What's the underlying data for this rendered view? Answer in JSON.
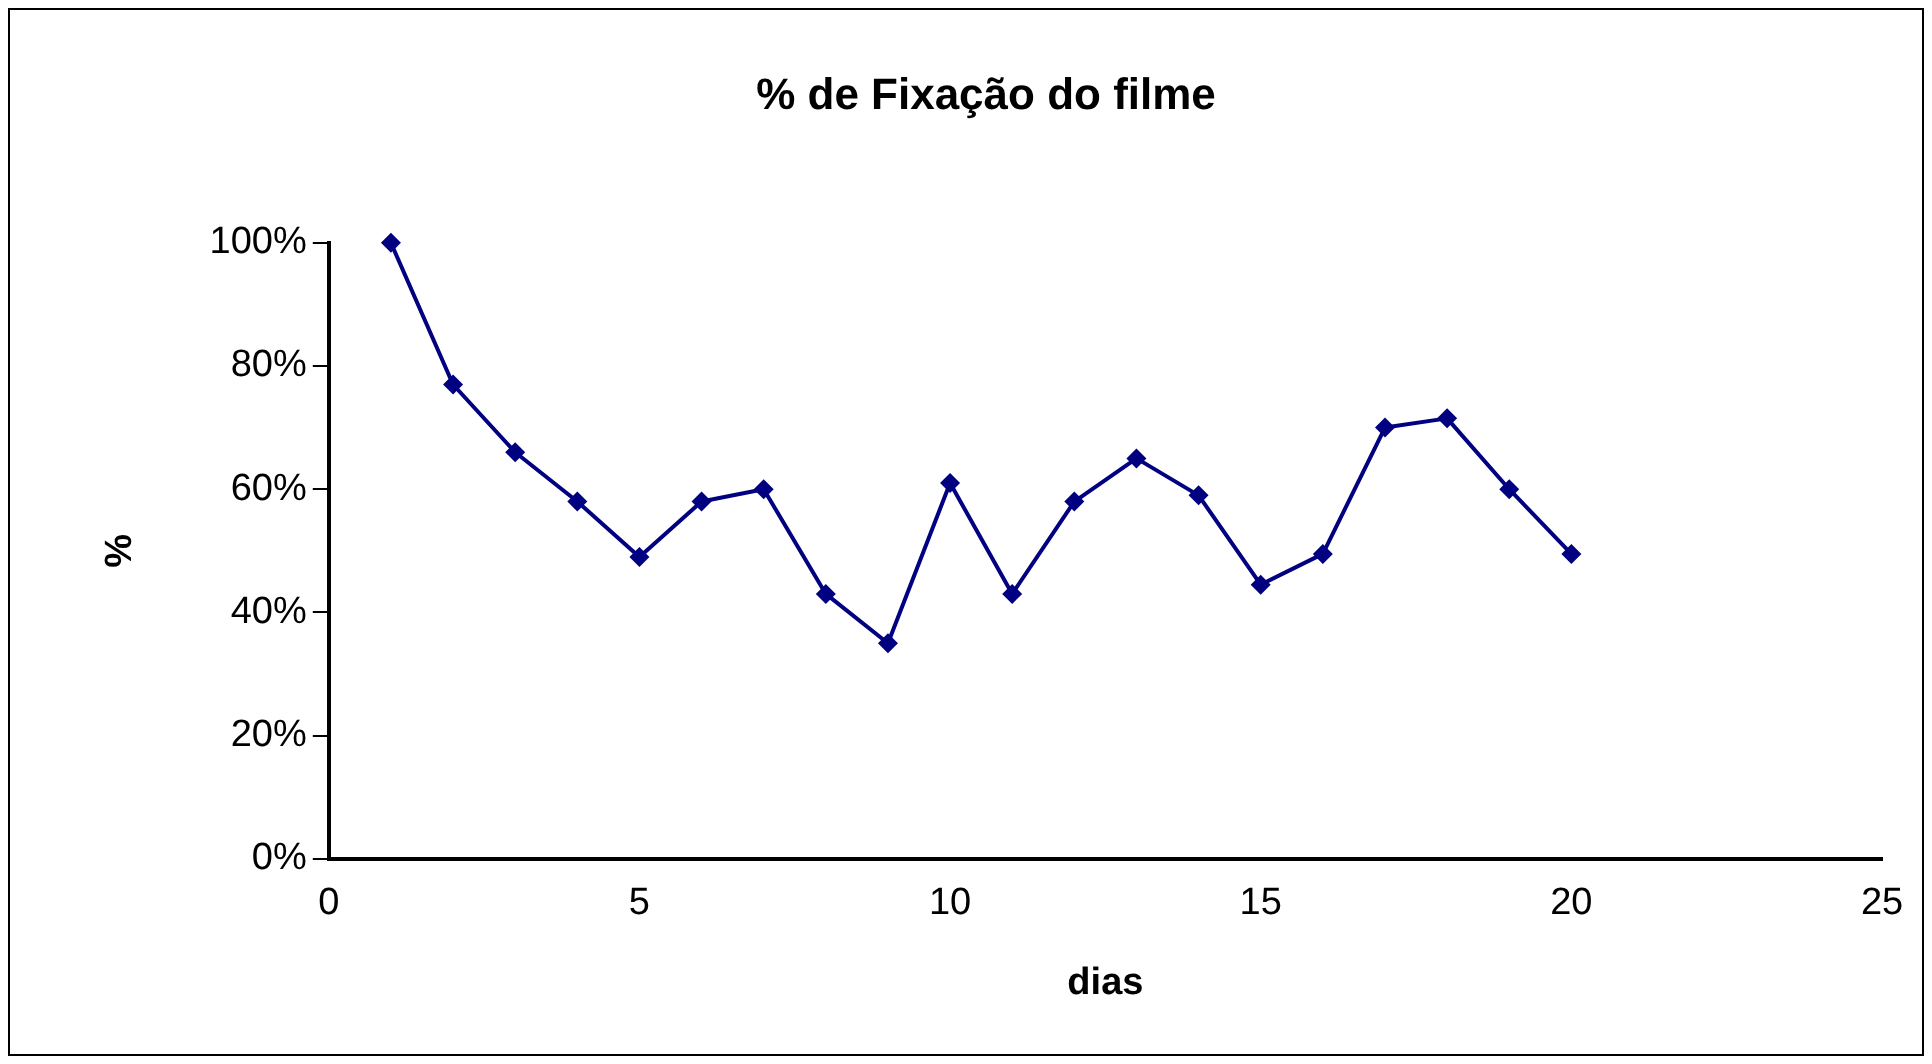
{
  "chart_data": {
    "type": "line",
    "title": "% de Fixação do filme",
    "xlabel": "dias",
    "ylabel": "%",
    "x": [
      1,
      2,
      3,
      4,
      5,
      6,
      7,
      8,
      9,
      10,
      11,
      12,
      13,
      14,
      15,
      16,
      17,
      18,
      19,
      20
    ],
    "series": [
      {
        "color": "#000080",
        "values": [
          100,
          77,
          66,
          58,
          49,
          58,
          60,
          43,
          35,
          61,
          43,
          58,
          65,
          59,
          44.5,
          49.5,
          70,
          71.5,
          60,
          49.5
        ]
      }
    ],
    "xlim": [
      0,
      25
    ],
    "xticks": [
      0,
      5,
      10,
      15,
      20,
      25
    ],
    "ylim": [
      0,
      100
    ],
    "yticks": [
      {
        "value": 0,
        "label": "0%"
      },
      {
        "value": 20,
        "label": "20%"
      },
      {
        "value": 40,
        "label": "40%"
      },
      {
        "value": 60,
        "label": "60%"
      },
      {
        "value": 80,
        "label": "80%"
      },
      {
        "value": 100,
        "label": "100%"
      }
    ],
    "grid": false,
    "legend": false,
    "marker": "diamond",
    "line_style": "solid"
  }
}
